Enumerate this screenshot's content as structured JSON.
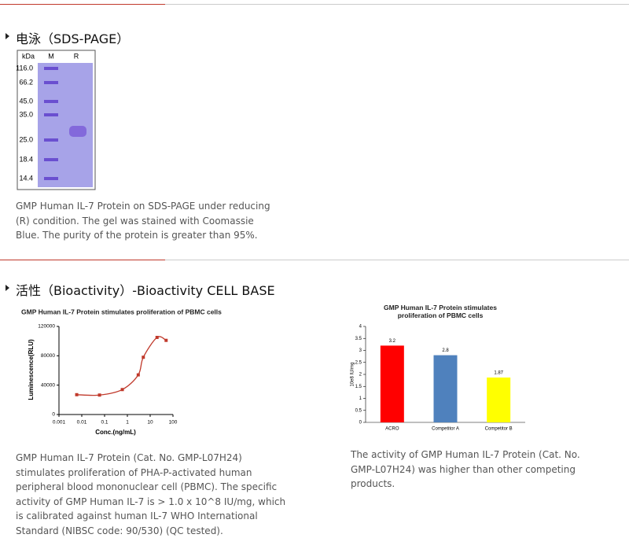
{
  "section1": {
    "heading": "电泳（SDS-PAGE）",
    "gel": {
      "unit": "kDa",
      "lanes": [
        "M",
        "R"
      ],
      "markers": [
        "116.0",
        "66.2",
        "45.0",
        "35.0",
        "25.0",
        "18.4",
        "14.4"
      ]
    },
    "caption": "GMP Human IL-7 Protein on SDS-PAGE under reducing (R) condition. The gel was stained with Coomassie Blue. The purity of the protein is greater than 95%."
  },
  "section2": {
    "heading": "活性（Bioactivity）-Bioactivity CELL BASE",
    "chart_data": [
      {
        "type": "scatter",
        "title": "GMP Human IL-7 Protein stimulates proliferation of PBMC cells",
        "x_label": "Conc.(ng/mL)",
        "y_label": "Luminescence(RLU)",
        "x_scale": "log",
        "color": "#c0392b",
        "x": [
          0.006,
          0.06,
          0.6,
          3,
          5,
          20,
          50
        ],
        "values": [
          27000,
          26500,
          34000,
          54000,
          78000,
          105000,
          101000
        ],
        "xlim": [
          0.001,
          100
        ],
        "xticks": [
          0.001,
          0.01,
          0.1,
          1,
          10,
          100
        ],
        "ylim": [
          0,
          120000
        ],
        "yticks": [
          0,
          40000,
          80000,
          120000
        ]
      },
      {
        "type": "bar",
        "title": "GMP Human IL-7 Protein stimulates proliferation of PBMC cells",
        "y_label": "10e8 IU/mg",
        "categories": [
          "ACRO",
          "Competitor A",
          "Competitor B"
        ],
        "values": [
          3.2,
          2.8,
          1.87
        ],
        "colors": [
          "#ff0000",
          "#4f81bd",
          "#ffff00"
        ],
        "ylim": [
          0,
          4
        ],
        "yticks": [
          0,
          0.5,
          1,
          1.5,
          2,
          2.5,
          3,
          3.5,
          4
        ]
      }
    ],
    "caption1": "GMP Human IL-7 Protein (Cat. No. GMP-L07H24) stimulates proliferation of PHA-P-activated human peripheral blood mononuclear cell (PBMC). The specific activity of GMP Human IL-7 is > 1.0 x 10^8 IU/mg, which is calibrated against human IL-7 WHO International Standard (NIBSC code: 90/530) (QC tested).",
    "caption2": "The activity of GMP Human IL-7 Protein (Cat. No. GMP-L07H24) was higher than other competing products."
  }
}
